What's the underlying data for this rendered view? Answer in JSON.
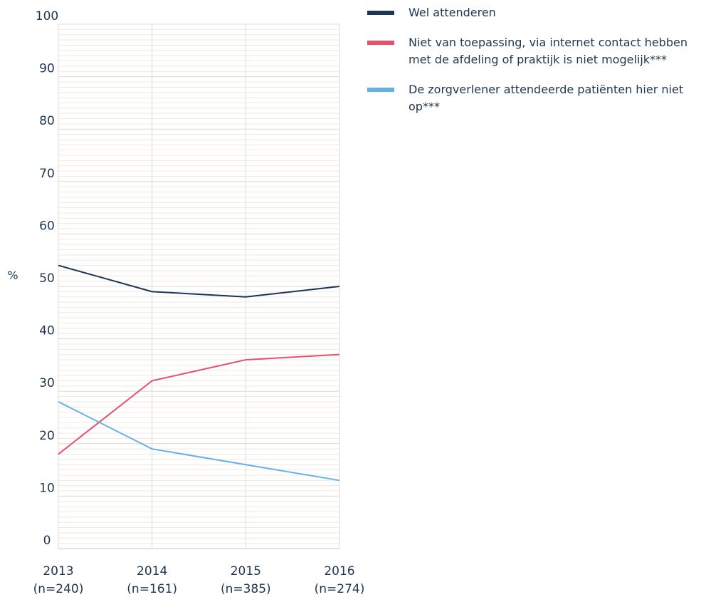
{
  "chart_data": {
    "type": "line",
    "ylabel": "%",
    "ylim": [
      0,
      100
    ],
    "yticks": [
      0,
      10,
      20,
      30,
      40,
      50,
      60,
      70,
      80,
      90,
      100
    ],
    "categories": [
      "2013",
      "2014",
      "2015",
      "2016"
    ],
    "category_sublabels": [
      "(n=240)",
      "(n=161)",
      "(n=385)",
      "(n=274)"
    ],
    "grid": true,
    "legend_position": "right",
    "series": [
      {
        "name": "Wel attenderen",
        "color": "#1d3557",
        "values": [
          54,
          49,
          48,
          50
        ]
      },
      {
        "name": "Niet van toepassing, via internet contact hebben met de afdeling of praktijk is niet mogelijk***",
        "color": "#e9506a",
        "values": [
          18,
          32,
          36,
          37
        ]
      },
      {
        "name": "De zorgverlener attendeerde patiënten hier niet op***",
        "color": "#64b2e3",
        "values": [
          28,
          19,
          16,
          13
        ]
      }
    ]
  }
}
